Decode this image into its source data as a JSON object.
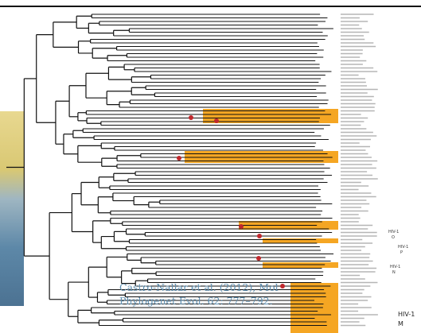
{
  "citation": {
    "line1": "Castro-Nallar et al. (2012), Mol",
    "line2": "Phylogenet Evol. 62: 777–792."
  },
  "clade_labels": [
    {
      "line1": "HIV-1",
      "line2": "O"
    },
    {
      "line1": "HIV-1",
      "line2": "P"
    },
    {
      "line1": "HIV-1",
      "line2": "N"
    },
    {
      "line1": "HIV-1",
      "line2": "M"
    }
  ]
}
